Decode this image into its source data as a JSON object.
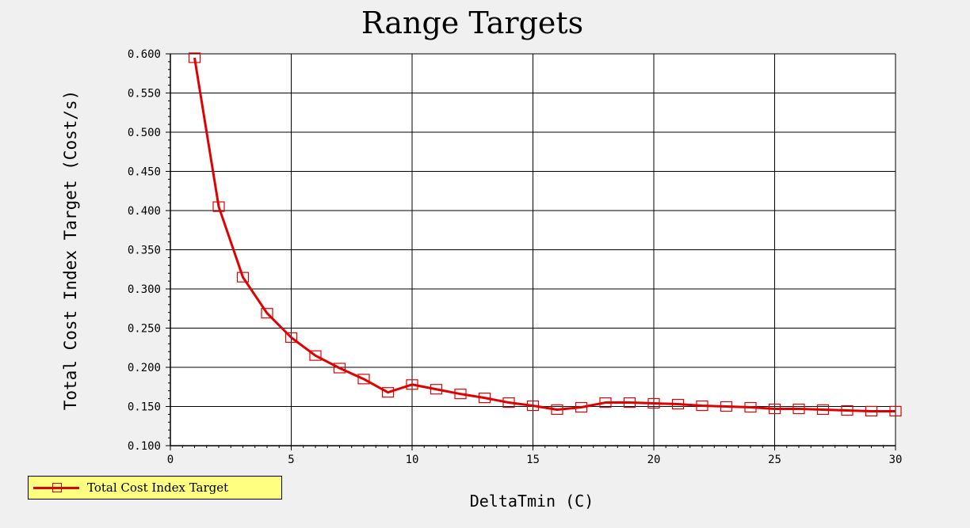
{
  "chart_data": {
    "type": "line",
    "title": "Range Targets",
    "xlabel": "DeltaTmin (C)",
    "ylabel": "Total Cost Index Target (Cost/s)",
    "xlim": [
      0,
      30
    ],
    "ylim": [
      0.1,
      0.6
    ],
    "xticks": [
      0,
      5,
      10,
      15,
      20,
      25,
      30
    ],
    "yticks": [
      0.1,
      0.15,
      0.2,
      0.25,
      0.3,
      0.35,
      0.4,
      0.45,
      0.5,
      0.55,
      0.6
    ],
    "grid": true,
    "legend_position": "bottom-left",
    "series": [
      {
        "name": "Total Cost Index Target",
        "color": "#e00000",
        "marker": "square",
        "x": [
          1,
          2,
          3,
          4,
          5,
          6,
          7,
          8,
          9,
          10,
          11,
          12,
          13,
          14,
          15,
          16,
          17,
          18,
          19,
          20,
          21,
          22,
          23,
          24,
          25,
          26,
          27,
          28,
          29,
          30
        ],
        "y": [
          0.595,
          0.405,
          0.315,
          0.269,
          0.238,
          0.215,
          0.199,
          0.185,
          0.168,
          0.178,
          0.172,
          0.166,
          0.161,
          0.155,
          0.151,
          0.146,
          0.149,
          0.155,
          0.155,
          0.154,
          0.153,
          0.151,
          0.15,
          0.149,
          0.147,
          0.147,
          0.146,
          0.145,
          0.144,
          0.144
        ]
      }
    ]
  }
}
